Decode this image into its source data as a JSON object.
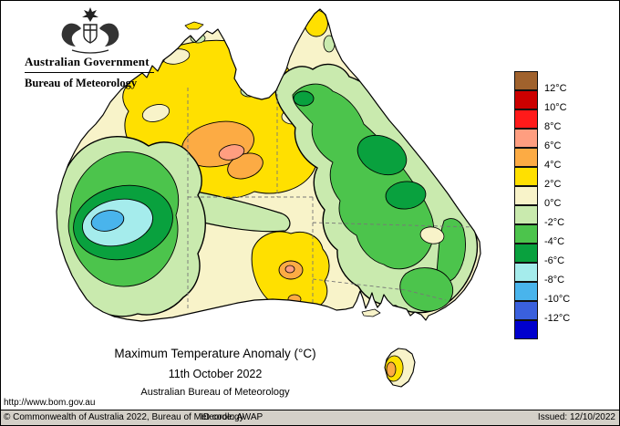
{
  "header": {
    "government": "Australian Government",
    "bureau": "Bureau of Meteorology"
  },
  "caption": {
    "title": "Maximum Temperature Anomaly (°C)",
    "date": "11th October 2022",
    "org": "Australian Bureau of Meteorology"
  },
  "palette": {
    "brown": "#a0622d",
    "dark_red": "#cc0000",
    "red": "#ff1a1a",
    "salmon": "#ff9e80",
    "orange": "#fcab44",
    "yellow": "#ffe000",
    "cream": "#f8f3c9",
    "pale_green": "#c9eaae",
    "green": "#4cc44c",
    "dark_green": "#09a13e",
    "pale_cyan": "#a5ecec",
    "cyan_blue": "#49b4ec",
    "blue": "#3a60dd",
    "dark_blue": "#0000cd"
  },
  "legend": {
    "items": [
      {
        "color": "brown",
        "label": "12°C"
      },
      {
        "color": "dark_red",
        "label": "10°C"
      },
      {
        "color": "red",
        "label": "8°C"
      },
      {
        "color": "salmon",
        "label": "6°C"
      },
      {
        "color": "orange",
        "label": "4°C"
      },
      {
        "color": "yellow",
        "label": "2°C"
      },
      {
        "color": "cream",
        "label": "0°C"
      },
      {
        "color": "pale_green",
        "label": "-2°C"
      },
      {
        "color": "green",
        "label": "-4°C"
      },
      {
        "color": "dark_green",
        "label": "-6°C"
      },
      {
        "color": "pale_cyan",
        "label": "-8°C"
      },
      {
        "color": "cyan_blue",
        "label": "-10°C"
      },
      {
        "color": "blue",
        "label": "-12°C"
      },
      {
        "color": "dark_blue",
        "label": null
      }
    ]
  },
  "footer": {
    "url": "http://www.bom.gov.au",
    "copyright": "© Commonwealth of Australia 2022, Bureau of Meteorology",
    "id_code": "ID code: AWAP",
    "issued": "Issued: 12/10/2022"
  }
}
